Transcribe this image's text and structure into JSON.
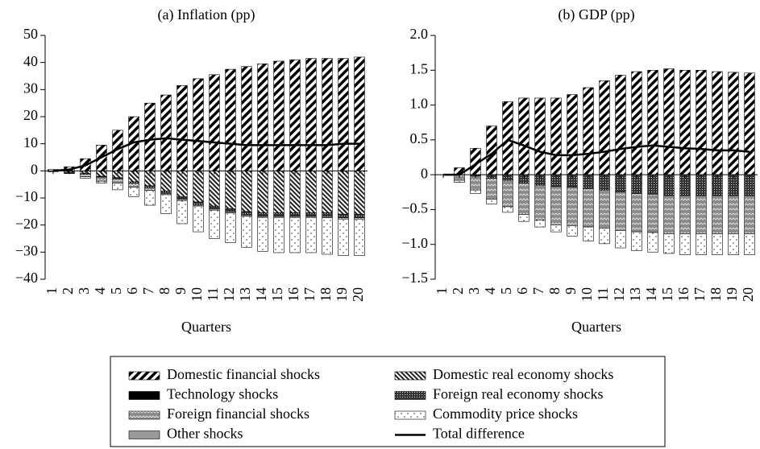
{
  "chart_data": [
    {
      "type": "bar",
      "stacked": true,
      "title": "(a) Inflation (pp)",
      "xlabel": "Quarters",
      "categories": [
        "1",
        "2",
        "3",
        "4",
        "5",
        "6",
        "7",
        "8",
        "9",
        "10",
        "11",
        "12",
        "13",
        "14",
        "15",
        "16",
        "17",
        "18",
        "19",
        "20"
      ],
      "ylim": [
        -40,
        50
      ],
      "yticks": [
        {
          "value": -40,
          "label": "−40"
        },
        {
          "value": -30,
          "label": "−30"
        },
        {
          "value": -20,
          "label": "−20"
        },
        {
          "value": -10,
          "label": "−10"
        },
        0,
        10,
        20,
        30,
        40,
        50
      ],
      "series": [
        {
          "values": [
            0.5,
            1.5,
            4.5,
            9.5,
            15,
            20,
            25,
            28,
            31.5,
            34,
            35.5,
            37.5,
            38.5,
            39.5,
            40.5,
            41,
            41.5,
            41.5,
            41.5,
            42
          ]
        },
        {
          "values": [
            0,
            0,
            0,
            0,
            0,
            0,
            0,
            0,
            0,
            0,
            0,
            0,
            0,
            0,
            0,
            0,
            0,
            0,
            0,
            0
          ]
        },
        {
          "values": [
            0,
            -0.3,
            -1,
            -1.5,
            -1.5,
            -1.5,
            -1,
            -0.5,
            -0.5,
            -0.5,
            -0.5,
            -0.5,
            -0.5,
            -0.5,
            -0.5,
            -0.5,
            -0.5,
            -0.5,
            -0.5,
            -0.5
          ]
        },
        {
          "values": [
            0,
            0,
            0,
            0,
            0,
            0,
            0,
            0,
            0,
            0,
            0,
            0,
            0,
            0,
            0,
            0,
            0,
            0,
            0,
            0
          ]
        },
        {
          "values": [
            -0.3,
            -0.5,
            -1,
            -2,
            -2.5,
            -4,
            -5.5,
            -7.5,
            -9.5,
            -11.5,
            -13,
            -14,
            -15,
            -15.5,
            -15.5,
            -15.5,
            -15.5,
            -15.5,
            -16,
            -16
          ]
        },
        {
          "values": [
            0,
            0,
            -0.2,
            -0.3,
            -0.5,
            -0.5,
            -0.7,
            -0.8,
            -1,
            -1,
            -1,
            -1,
            -1.2,
            -1.2,
            -1.2,
            -1.2,
            -1.2,
            -1.3,
            -1.3,
            -1.3
          ]
        },
        {
          "values": [
            0,
            -0.2,
            -0.5,
            -0.7,
            -2.5,
            -3.5,
            -5.5,
            -7,
            -8.5,
            -9.5,
            -10.5,
            -11,
            -11.5,
            -12.5,
            -13,
            -13,
            -13,
            -13.5,
            -13.5,
            -13.5
          ]
        }
      ],
      "line": {
        "values": [
          0,
          0.5,
          2,
          5,
          8,
          10.5,
          11.5,
          12,
          11.5,
          11,
          10.5,
          10,
          9.5,
          9.5,
          9.5,
          9.5,
          9.5,
          9.5,
          10,
          10
        ]
      }
    },
    {
      "type": "bar",
      "stacked": true,
      "title": "(b) GDP (pp)",
      "xlabel": "Quarters",
      "categories": [
        "1",
        "2",
        "3",
        "4",
        "5",
        "6",
        "7",
        "8",
        "9",
        "10",
        "11",
        "12",
        "13",
        "14",
        "15",
        "16",
        "17",
        "18",
        "19",
        "20"
      ],
      "ylim": [
        -1.5,
        2
      ],
      "yticks": [
        {
          "value": -1.5,
          "label": "−1.5"
        },
        {
          "value": -1,
          "label": "−1.0"
        },
        {
          "value": -0.5,
          "label": "−0.5"
        },
        0,
        0.5,
        {
          "value": 1,
          "label": "1.0"
        },
        1.5,
        {
          "value": 2,
          "label": "2.0"
        }
      ],
      "series": [
        {
          "values": [
            0,
            0.1,
            0.38,
            0.7,
            1.05,
            1.1,
            1.1,
            1.1,
            1.15,
            1.25,
            1.35,
            1.43,
            1.48,
            1.5,
            1.52,
            1.5,
            1.5,
            1.48,
            1.47,
            1.46
          ]
        },
        {
          "values": [
            0,
            0,
            0,
            0,
            0,
            0,
            0,
            0,
            0,
            0,
            0,
            0,
            0,
            0,
            0,
            0,
            0,
            0,
            0,
            0
          ]
        },
        {
          "values": [
            0,
            -0.08,
            -0.2,
            -0.3,
            -0.38,
            -0.45,
            -0.5,
            -0.55,
            -0.55,
            -0.55,
            -0.55,
            -0.55,
            -0.55,
            -0.55,
            -0.55,
            -0.55,
            -0.55,
            -0.55,
            -0.55,
            -0.55
          ]
        },
        {
          "values": [
            0,
            0,
            0,
            0,
            0,
            0,
            0,
            0,
            0,
            0,
            0,
            0,
            0,
            0,
            0,
            0,
            0,
            0,
            0,
            0
          ]
        },
        {
          "values": [
            0,
            0,
            0,
            0,
            0,
            0,
            0,
            0,
            0,
            0,
            0,
            0,
            0,
            0,
            0,
            0,
            0,
            0,
            0,
            0
          ]
        },
        {
          "values": [
            0,
            0,
            -0.02,
            -0.05,
            -0.08,
            -0.12,
            -0.15,
            -0.17,
            -0.18,
            -0.2,
            -0.22,
            -0.25,
            -0.27,
            -0.28,
            -0.3,
            -0.3,
            -0.3,
            -0.3,
            -0.3,
            -0.3
          ]
        },
        {
          "values": [
            0,
            -0.03,
            -0.05,
            -0.07,
            -0.08,
            -0.1,
            -0.1,
            -0.1,
            -0.15,
            -0.2,
            -0.22,
            -0.25,
            -0.27,
            -0.28,
            -0.28,
            -0.3,
            -0.3,
            -0.3,
            -0.3,
            -0.3
          ]
        }
      ],
      "line": {
        "values": [
          0,
          0,
          0.15,
          0.3,
          0.5,
          0.42,
          0.33,
          0.28,
          0.28,
          0.3,
          0.33,
          0.37,
          0.4,
          0.42,
          0.4,
          0.38,
          0.37,
          0.35,
          0.35,
          0.33
        ]
      }
    }
  ],
  "legend": [
    {
      "name": "Domestic financial shocks",
      "pattern": "diag"
    },
    {
      "name": "Technology shocks",
      "pattern": "black"
    },
    {
      "name": "Foreign financial shocks",
      "pattern": "wave"
    },
    {
      "name": "Other shocks",
      "pattern": "gray"
    },
    {
      "name": "Domestic real economy shocks",
      "pattern": "back"
    },
    {
      "name": "Foreign real economy shocks",
      "pattern": "dots"
    },
    {
      "name": "Commodity price shocks",
      "pattern": "sparse"
    },
    {
      "name": "Total difference",
      "pattern": "line"
    }
  ]
}
